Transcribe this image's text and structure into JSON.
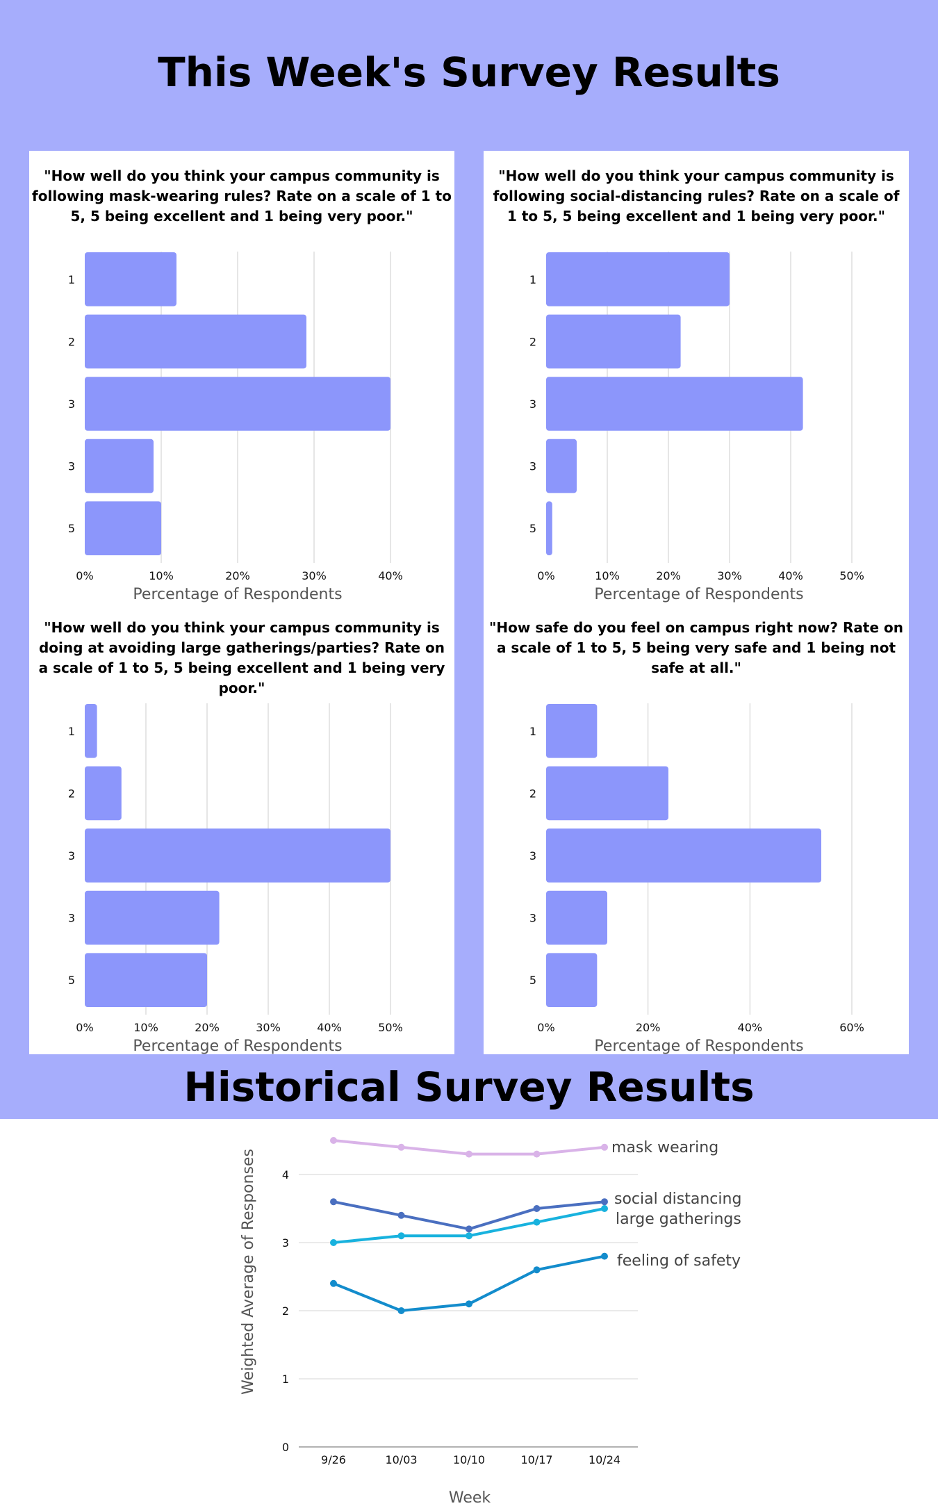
{
  "header": {
    "weekly_title": "This Week's Survey Results",
    "historical_title": "Historical Survey Results"
  },
  "colors": {
    "background": "#a6adfc",
    "bar": "#8c96fb",
    "mask_wearing": "#d9b3e8",
    "social_distancing": "#4a6fc0",
    "large_gatherings": "#18b2de",
    "feeling_of_safety": "#138ccc"
  },
  "chart_data": [
    {
      "type": "bar",
      "orientation": "horizontal",
      "title": "\"How well do you think your campus community is following mask-wearing rules? Rate on a scale of 1 to 5, 5 being excellent and 1 being very poor.\"",
      "categories": [
        "1",
        "2",
        "3",
        "3",
        "5"
      ],
      "values": [
        12,
        29,
        40,
        9,
        10
      ],
      "xlabel": "Percentage of Respondents",
      "xlim": [
        0,
        40
      ],
      "xticks": [
        "0%",
        "10%",
        "20%",
        "30%",
        "40%"
      ],
      "grid": true
    },
    {
      "type": "bar",
      "orientation": "horizontal",
      "title": "\"How well do you think your campus community is following social-distancing rules? Rate on a scale of 1 to 5, 5 being excellent and 1 being very poor.\"",
      "categories": [
        "1",
        "2",
        "3",
        "3",
        "5"
      ],
      "values": [
        30,
        22,
        42,
        5,
        1
      ],
      "xlabel": "Percentage of Respondents",
      "xlim": [
        0,
        50
      ],
      "xticks": [
        "0%",
        "10%",
        "20%",
        "30%",
        "40%",
        "50%"
      ],
      "grid": true
    },
    {
      "type": "bar",
      "orientation": "horizontal",
      "title": "\"How well do you think your campus community is doing at avoiding large gatherings/parties? Rate on a scale of 1 to 5, 5 being excellent and 1 being very poor.\"",
      "categories": [
        "1",
        "2",
        "3",
        "3",
        "5"
      ],
      "values": [
        2,
        6,
        50,
        22,
        20
      ],
      "xlabel": "Percentage of Respondents",
      "xlim": [
        0,
        50
      ],
      "xticks": [
        "0%",
        "10%",
        "20%",
        "30%",
        "40%",
        "50%"
      ],
      "grid": true
    },
    {
      "type": "bar",
      "orientation": "horizontal",
      "title": "\"How safe do you feel on campus right now? Rate on a scale of 1 to 5, 5 being very safe and 1 being not safe at all.\"",
      "categories": [
        "1",
        "2",
        "3",
        "3",
        "5"
      ],
      "values": [
        10,
        24,
        54,
        12,
        10
      ],
      "xlabel": "Percentage of Respondents",
      "xlim": [
        0,
        60
      ],
      "xticks": [
        "0%",
        "20%",
        "40%",
        "60%"
      ],
      "grid": true
    },
    {
      "type": "line",
      "x": [
        "9/26",
        "10/03",
        "10/10",
        "10/17",
        "10/24"
      ],
      "xlabel": "Week",
      "ylabel": "Weighted Average of Responses",
      "ylim": [
        0,
        4.5
      ],
      "yticks": [
        "0",
        "1",
        "2",
        "3",
        "4"
      ],
      "grid": true,
      "series": [
        {
          "name": "mask wearing",
          "values": [
            4.5,
            4.4,
            4.3,
            4.3,
            4.4
          ]
        },
        {
          "name": "social distancing",
          "values": [
            3.6,
            3.4,
            3.2,
            3.5,
            3.6
          ]
        },
        {
          "name": "large gatherings",
          "values": [
            3.0,
            3.1,
            3.1,
            3.3,
            3.5
          ]
        },
        {
          "name": "feeling of safety",
          "values": [
            2.4,
            2.0,
            2.1,
            2.6,
            2.8
          ]
        }
      ]
    }
  ]
}
